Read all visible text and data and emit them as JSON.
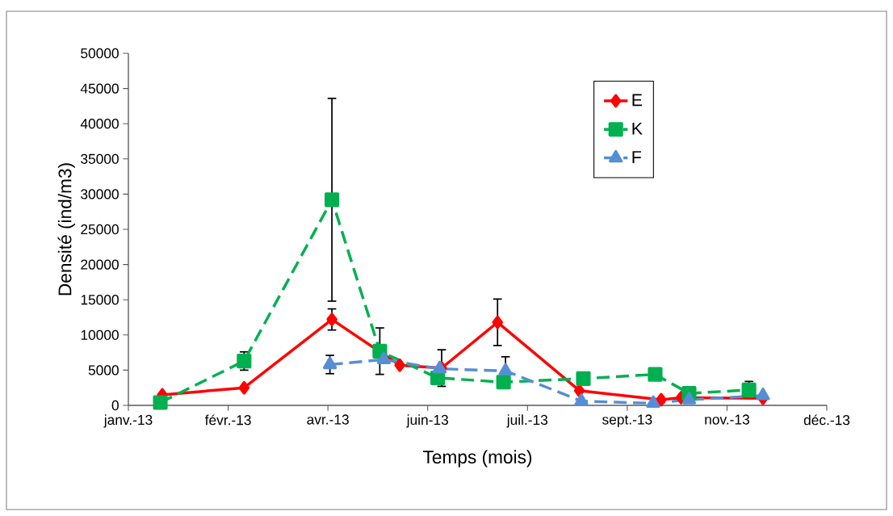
{
  "chart_data": {
    "type": "line",
    "xlabel": "Temps (mois)",
    "ylabel": "Densité (ind/m3)",
    "xlim": [
      "2013-01-06",
      "2013-12-22"
    ],
    "xticks": [
      {
        "value": "2013-01-06",
        "label": "janv.-13"
      },
      {
        "value": "2013-02-25",
        "label": "févr.-13"
      },
      {
        "value": "2013-04-16",
        "label": "avr.-13"
      },
      {
        "value": "2013-06-05",
        "label": "juin-13"
      },
      {
        "value": "2013-07-25",
        "label": "juil.-13"
      },
      {
        "value": "2013-09-13",
        "label": "sept.-13"
      },
      {
        "value": "2013-11-02",
        "label": "nov.-13"
      },
      {
        "value": "2013-12-22",
        "label": "déc.-13"
      }
    ],
    "ylim": [
      0,
      50000
    ],
    "yticks": [
      0,
      5000,
      10000,
      15000,
      20000,
      25000,
      30000,
      35000,
      40000,
      45000,
      50000
    ],
    "grid": false,
    "legend": "top right",
    "series": [
      {
        "name": "E",
        "color": "#ff0000",
        "marker": "diamond",
        "line_style": "solid",
        "x": [
          "2013-01-23",
          "2013-03-05",
          "2013-04-18",
          "2013-05-22",
          "2013-06-12",
          "2013-07-10",
          "2013-08-20",
          "2013-09-30",
          "2013-10-10",
          "2013-11-20"
        ],
        "values": [
          1500,
          2500,
          12200,
          5700,
          5300,
          11800,
          2100,
          800,
          1100,
          1000
        ],
        "errors": [
          null,
          null,
          1500,
          null,
          2600,
          3300,
          null,
          null,
          null,
          null
        ]
      },
      {
        "name": "K",
        "color": "#00b050",
        "marker": "square",
        "line_style": "dashed",
        "x": [
          "2013-01-22",
          "2013-03-05",
          "2013-04-18",
          "2013-05-12",
          "2013-06-10",
          "2013-07-13",
          "2013-08-22",
          "2013-09-27",
          "2013-10-14",
          "2013-11-13"
        ],
        "values": [
          400,
          6300,
          29200,
          7700,
          3900,
          3300,
          3800,
          4400,
          1700,
          2200
        ],
        "errors": [
          null,
          1300,
          14400,
          3300,
          null,
          null,
          null,
          null,
          null,
          1200
        ]
      },
      {
        "name": "F",
        "color": "#558ed5",
        "marker": "triangle",
        "line_style": "dashed",
        "x": [
          "2013-04-17",
          "2013-05-14",
          "2013-06-11",
          "2013-07-14",
          "2013-08-21",
          "2013-09-26",
          "2013-10-14",
          "2013-11-20"
        ],
        "values": [
          5800,
          6500,
          5200,
          4900,
          600,
          300,
          800,
          1400
        ],
        "errors": [
          1300,
          null,
          null,
          2000,
          null,
          null,
          null,
          null
        ]
      }
    ]
  }
}
